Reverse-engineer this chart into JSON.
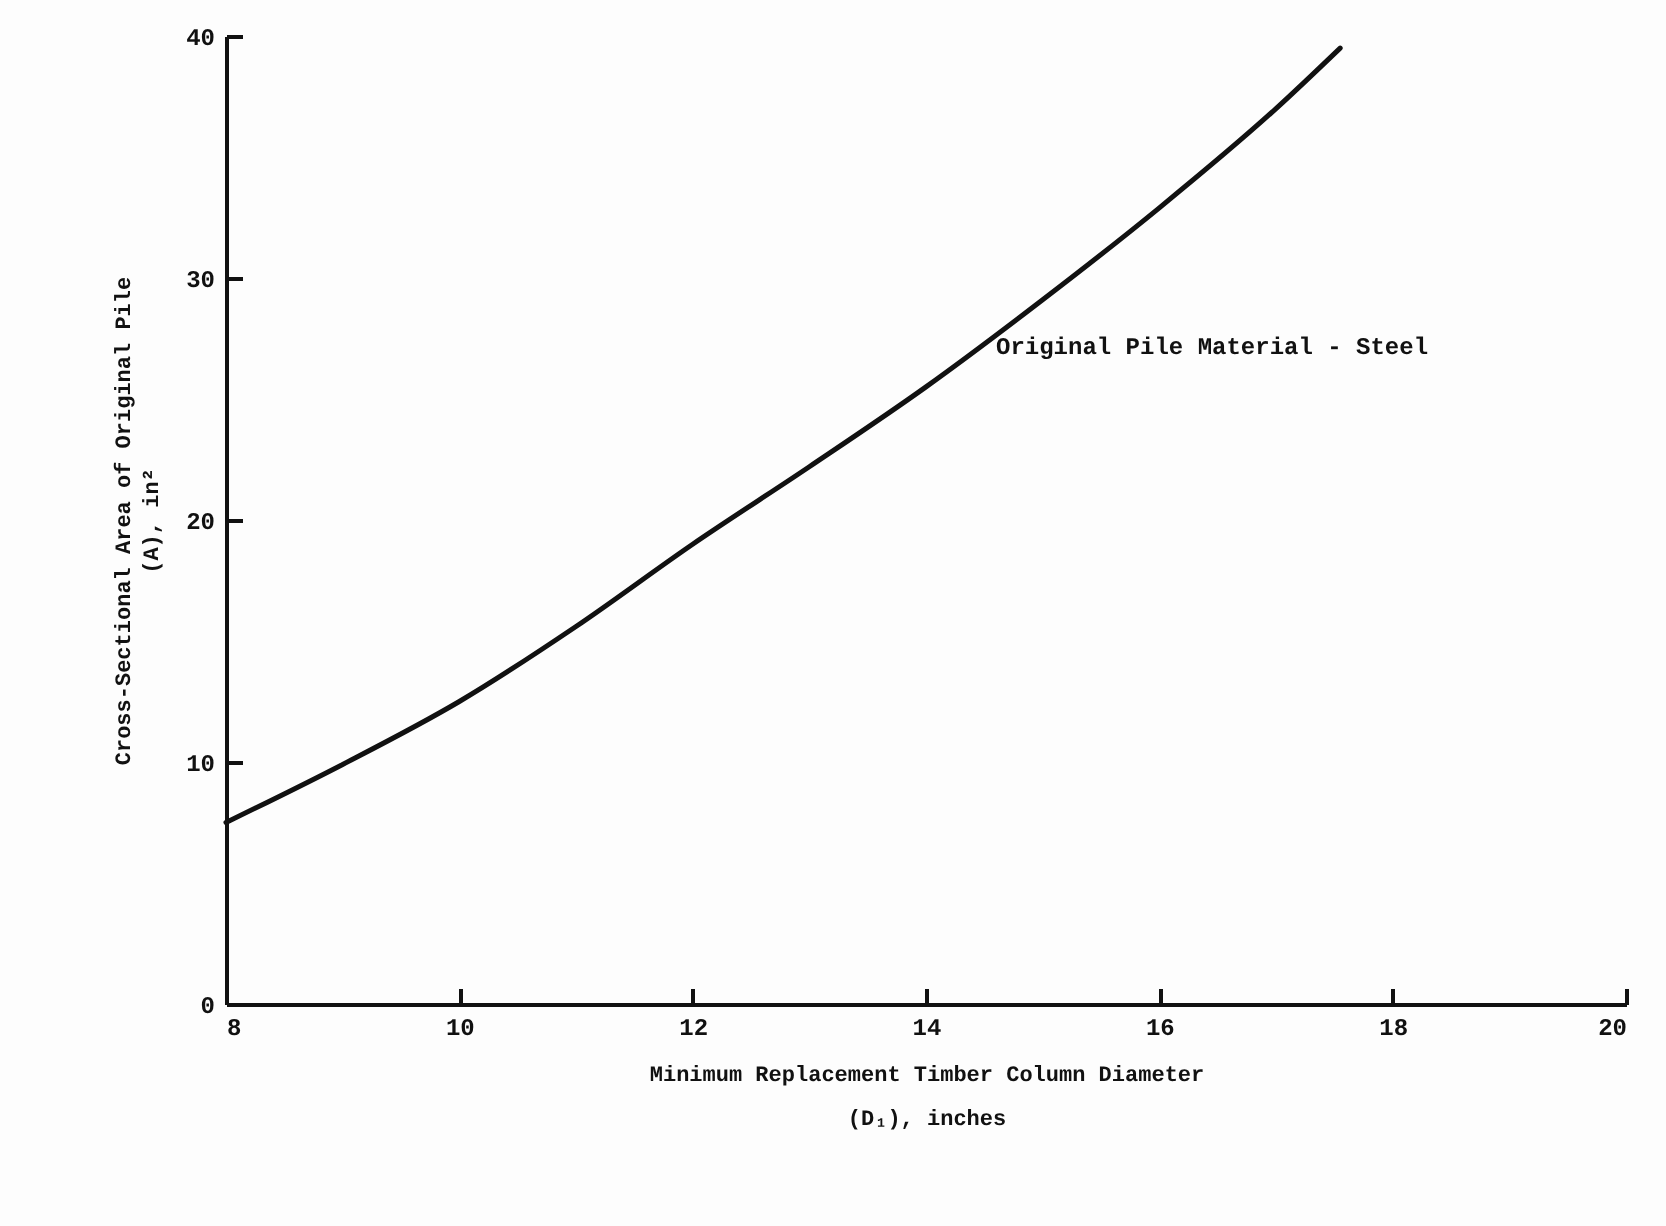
{
  "chart_data": {
    "type": "line",
    "xlabel": "Minimum Replacement Timber Column Diameter (D₁), inches",
    "ylabel": "Cross-Sectional Area of Original Pile (A), in²",
    "x": [
      8,
      9,
      10,
      11,
      12,
      13,
      14,
      15,
      16,
      17,
      17.55
    ],
    "series": [
      {
        "color": "#111111",
        "values": [
          7.5,
          9.9,
          12.5,
          15.6,
          19.0,
          22.2,
          25.5,
          29.1,
          32.9,
          37.0,
          39.5
        ]
      }
    ],
    "xlim": [
      8,
      20
    ],
    "xticks": [
      8,
      10,
      12,
      14,
      16,
      18,
      20
    ],
    "ylim": [
      0,
      40
    ],
    "yticks": [
      0,
      10,
      20,
      30,
      40
    ],
    "annotations": [
      "Original Pile Material - Steel"
    ],
    "grid": false,
    "marker": "none",
    "line_style": "solid"
  }
}
